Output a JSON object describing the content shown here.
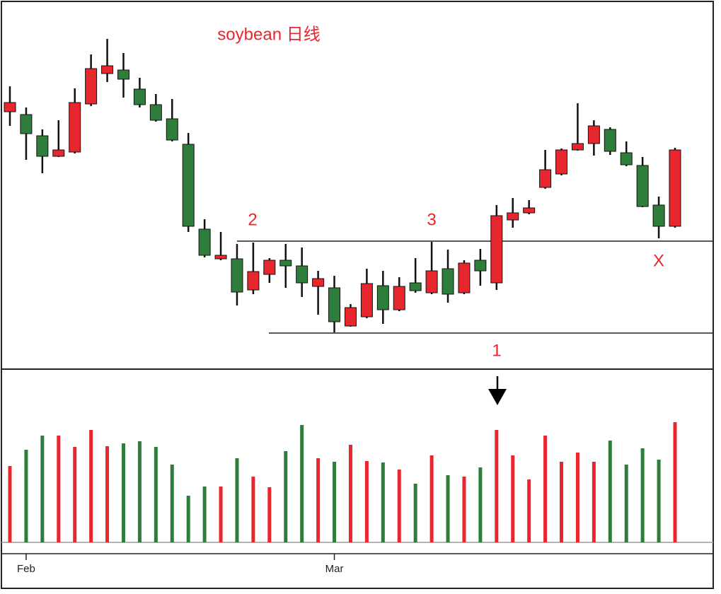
{
  "chart_data": {
    "type": "candlestick",
    "title": "soybean 日线",
    "categories": [
      null,
      "Feb",
      null,
      null,
      null,
      null,
      null,
      null,
      null,
      null,
      null,
      null,
      null,
      null,
      null,
      null,
      null,
      null,
      null,
      null,
      "Mar",
      null,
      null,
      null,
      null,
      null,
      null,
      null,
      null,
      null,
      null,
      null,
      null,
      null,
      null,
      null,
      null,
      null,
      null,
      null,
      null,
      null
    ],
    "open": [
      442,
      438,
      408,
      379,
      385,
      453,
      496,
      501,
      474,
      452,
      432,
      396,
      276,
      234,
      234,
      190,
      212,
      232,
      224,
      195,
      193,
      139,
      152,
      196,
      162,
      200,
      186,
      220,
      186,
      232,
      200,
      289,
      299,
      335,
      354,
      388,
      397,
      417,
      384,
      366,
      310,
      280
    ],
    "high": [
      478,
      448,
      417,
      430,
      475,
      523,
      545,
      525,
      490,
      467,
      460,
      412,
      290,
      272,
      255,
      257,
      235,
      255,
      250,
      217,
      210,
      170,
      220,
      217,
      208,
      235,
      258,
      247,
      232,
      248,
      310,
      320,
      317,
      388,
      390,
      454,
      430,
      420,
      400,
      378,
      322,
      391
    ],
    "low": [
      422,
      374,
      355,
      378,
      383,
      450,
      484,
      462,
      448,
      428,
      400,
      272,
      236,
      232,
      168,
      184,
      200,
      193,
      180,
      155,
      130,
      138,
      150,
      142,
      160,
      186,
      184,
      172,
      184,
      196,
      190,
      278,
      297,
      333,
      352,
      387,
      380,
      381,
      365,
      307,
      263,
      278
    ],
    "close": [
      455,
      411,
      379,
      388,
      455,
      503,
      507,
      488,
      452,
      430,
      402,
      280,
      239,
      239,
      187,
      216,
      232,
      224,
      200,
      206,
      145,
      165,
      199,
      162,
      195,
      189,
      217,
      184,
      228,
      217,
      295,
      299,
      306,
      360,
      388,
      397,
      422,
      386,
      367,
      308,
      280,
      388
    ],
    "volume": [
      108,
      131,
      151,
      151,
      135,
      159,
      136,
      140,
      143,
      135,
      110,
      66,
      79,
      79,
      119,
      93,
      78,
      129,
      166,
      119,
      114,
      138,
      115,
      113,
      103,
      83,
      123,
      95,
      93,
      106,
      159,
      123,
      89,
      151,
      114,
      127,
      114,
      144,
      110,
      133,
      117,
      170
    ],
    "up_color": "#e8262d",
    "down_color": "#2e7d3a",
    "ylim": [
      80,
      595
    ],
    "volume_ylim": [
      0,
      242
    ],
    "levels": [
      259,
      129
    ],
    "annotations": [
      "2",
      "3",
      "1",
      "X"
    ]
  }
}
